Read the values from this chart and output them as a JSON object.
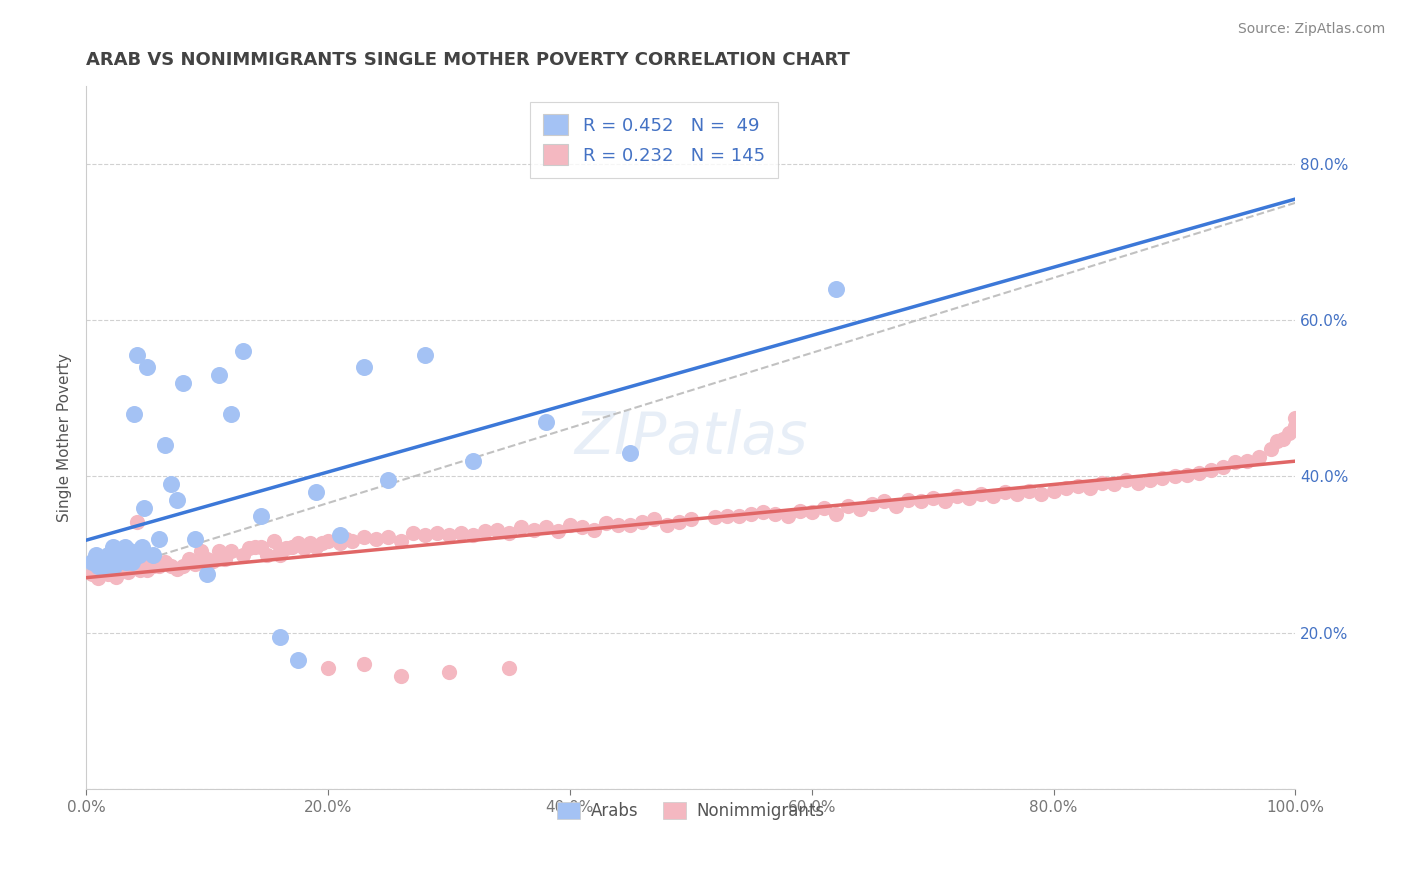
{
  "title": "ARAB VS NONIMMIGRANTS SINGLE MOTHER POVERTY CORRELATION CHART",
  "source": "Source: ZipAtlas.com",
  "ylabel": "Single Mother Poverty",
  "xlim": [
    0,
    1.0
  ],
  "ylim": [
    0.0,
    0.9
  ],
  "xticks": [
    0.0,
    0.2,
    0.4,
    0.6,
    0.8,
    1.0
  ],
  "xtick_labels": [
    "0.0%",
    "20.0%",
    "40.0%",
    "60.0%",
    "80.0%",
    "100.0%"
  ],
  "yticks": [
    0.0,
    0.2,
    0.4,
    0.6,
    0.8
  ],
  "ytick_labels_right": [
    "",
    "20.0%",
    "40.0%",
    "60.0%",
    "80.0%"
  ],
  "arab_R": 0.452,
  "arab_N": 49,
  "nonimm_R": 0.232,
  "nonimm_N": 145,
  "arab_color": "#a4c2f4",
  "nonimm_color": "#f4b8c1",
  "arab_line_color": "#3c78d8",
  "nonimm_line_color": "#e06666",
  "dashed_line_color": "#b7b7b7",
  "legend_box_arab": "#a4c2f4",
  "legend_box_nonimm": "#f4b8c1",
  "title_color": "#434343",
  "source_color": "#888888",
  "grid_color": "#cccccc",
  "label_color": "#4472c4",
  "arab_scatter_x": [
    0.005,
    0.008,
    0.01,
    0.012,
    0.015,
    0.017,
    0.018,
    0.02,
    0.022,
    0.023,
    0.025,
    0.027,
    0.028,
    0.03,
    0.031,
    0.032,
    0.033,
    0.035,
    0.036,
    0.038,
    0.04,
    0.042,
    0.044,
    0.046,
    0.048,
    0.05,
    0.055,
    0.06,
    0.065,
    0.07,
    0.075,
    0.08,
    0.09,
    0.1,
    0.11,
    0.12,
    0.13,
    0.145,
    0.16,
    0.175,
    0.19,
    0.21,
    0.23,
    0.25,
    0.28,
    0.32,
    0.38,
    0.45,
    0.62
  ],
  "arab_scatter_y": [
    0.29,
    0.3,
    0.285,
    0.295,
    0.285,
    0.29,
    0.3,
    0.3,
    0.31,
    0.285,
    0.295,
    0.3,
    0.295,
    0.295,
    0.3,
    0.31,
    0.29,
    0.295,
    0.305,
    0.29,
    0.48,
    0.555,
    0.3,
    0.31,
    0.36,
    0.54,
    0.3,
    0.32,
    0.44,
    0.39,
    0.37,
    0.52,
    0.32,
    0.275,
    0.53,
    0.48,
    0.56,
    0.35,
    0.195,
    0.165,
    0.38,
    0.325,
    0.54,
    0.395,
    0.555,
    0.42,
    0.47,
    0.43,
    0.64
  ],
  "nonimm_scatter_x": [
    0.005,
    0.008,
    0.01,
    0.015,
    0.018,
    0.02,
    0.022,
    0.025,
    0.028,
    0.03,
    0.032,
    0.035,
    0.038,
    0.04,
    0.042,
    0.045,
    0.048,
    0.05,
    0.055,
    0.06,
    0.065,
    0.07,
    0.075,
    0.08,
    0.085,
    0.09,
    0.095,
    0.1,
    0.105,
    0.11,
    0.115,
    0.12,
    0.13,
    0.135,
    0.14,
    0.145,
    0.15,
    0.155,
    0.16,
    0.165,
    0.17,
    0.175,
    0.18,
    0.185,
    0.19,
    0.195,
    0.2,
    0.21,
    0.215,
    0.22,
    0.23,
    0.24,
    0.25,
    0.26,
    0.27,
    0.28,
    0.29,
    0.3,
    0.31,
    0.32,
    0.33,
    0.34,
    0.35,
    0.36,
    0.37,
    0.38,
    0.39,
    0.4,
    0.41,
    0.42,
    0.43,
    0.44,
    0.45,
    0.46,
    0.47,
    0.48,
    0.49,
    0.5,
    0.52,
    0.53,
    0.54,
    0.55,
    0.56,
    0.57,
    0.58,
    0.59,
    0.6,
    0.61,
    0.62,
    0.63,
    0.64,
    0.65,
    0.66,
    0.67,
    0.68,
    0.69,
    0.7,
    0.71,
    0.72,
    0.73,
    0.74,
    0.75,
    0.76,
    0.77,
    0.78,
    0.79,
    0.8,
    0.81,
    0.82,
    0.83,
    0.84,
    0.85,
    0.86,
    0.87,
    0.88,
    0.89,
    0.9,
    0.91,
    0.92,
    0.93,
    0.94,
    0.95,
    0.96,
    0.97,
    0.98,
    0.985,
    0.99,
    0.995,
    1.0,
    1.0,
    0.16,
    0.2,
    0.23,
    0.26,
    0.3,
    0.35
  ],
  "nonimm_scatter_y": [
    0.275,
    0.28,
    0.27,
    0.285,
    0.275,
    0.28,
    0.278,
    0.272,
    0.28,
    0.28,
    0.282,
    0.278,
    0.29,
    0.285,
    0.342,
    0.28,
    0.285,
    0.28,
    0.285,
    0.285,
    0.29,
    0.285,
    0.282,
    0.285,
    0.295,
    0.288,
    0.305,
    0.295,
    0.292,
    0.305,
    0.295,
    0.305,
    0.3,
    0.308,
    0.31,
    0.31,
    0.3,
    0.318,
    0.305,
    0.308,
    0.31,
    0.315,
    0.308,
    0.315,
    0.31,
    0.315,
    0.318,
    0.315,
    0.32,
    0.318,
    0.322,
    0.32,
    0.322,
    0.318,
    0.328,
    0.325,
    0.328,
    0.325,
    0.328,
    0.325,
    0.33,
    0.332,
    0.328,
    0.335,
    0.332,
    0.335,
    0.33,
    0.338,
    0.335,
    0.332,
    0.34,
    0.338,
    0.338,
    0.342,
    0.345,
    0.338,
    0.342,
    0.345,
    0.348,
    0.35,
    0.35,
    0.352,
    0.355,
    0.352,
    0.35,
    0.356,
    0.355,
    0.36,
    0.352,
    0.362,
    0.358,
    0.365,
    0.368,
    0.362,
    0.37,
    0.368,
    0.372,
    0.368,
    0.375,
    0.372,
    0.378,
    0.375,
    0.38,
    0.378,
    0.382,
    0.378,
    0.382,
    0.385,
    0.388,
    0.385,
    0.392,
    0.39,
    0.395,
    0.392,
    0.395,
    0.398,
    0.4,
    0.402,
    0.405,
    0.408,
    0.412,
    0.418,
    0.42,
    0.425,
    0.435,
    0.445,
    0.448,
    0.455,
    0.465,
    0.475,
    0.3,
    0.155,
    0.16,
    0.145,
    0.15,
    0.155
  ]
}
